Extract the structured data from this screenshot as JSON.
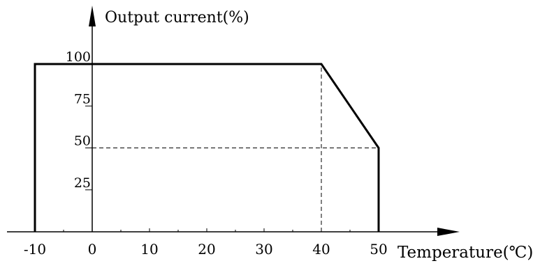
{
  "chart_data": {
    "type": "line",
    "ylabel": "Output current(%)",
    "xlabel": "Temperature(℃)",
    "x_ticks": [
      "-10",
      "0",
      "10",
      "20",
      "30",
      "40",
      "50"
    ],
    "y_ticks": [
      "100",
      "75",
      "50",
      "25"
    ],
    "xlim": [
      -10,
      50
    ],
    "ylim": [
      0,
      100
    ],
    "grid": false,
    "series": [
      {
        "x": [
          -10,
          -10,
          40,
          50,
          50
        ],
        "y": [
          0,
          100,
          100,
          50,
          0
        ]
      }
    ],
    "reference_lines": [
      {
        "x": [
          40,
          40
        ],
        "y": [
          0,
          100
        ]
      },
      {
        "x": [
          0,
          50
        ],
        "y": [
          50,
          50
        ]
      }
    ]
  }
}
